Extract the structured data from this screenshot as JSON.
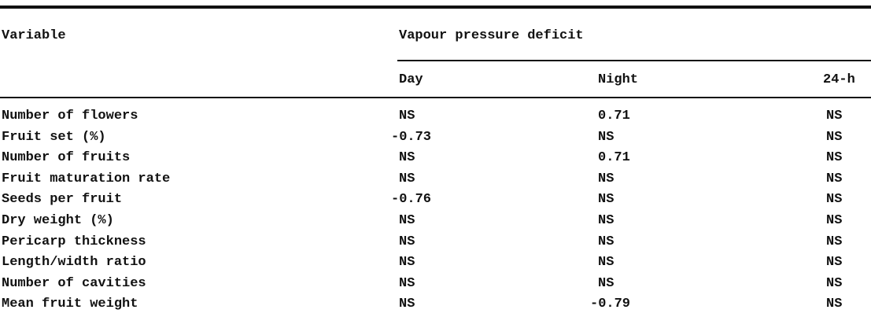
{
  "table": {
    "header": {
      "variable": "Variable",
      "group": "Vapour pressure deficit",
      "columns": [
        "Day",
        "Night",
        "24-h"
      ]
    },
    "rows": [
      {
        "variable": "Number of flowers",
        "day": "NS",
        "night": "0.71",
        "h24": "NS"
      },
      {
        "variable": "Fruit set (%)",
        "day": "-0.73",
        "night": "NS",
        "h24": "NS"
      },
      {
        "variable": "Number of fruits",
        "day": "NS",
        "night": "0.71",
        "h24": "NS"
      },
      {
        "variable": "Fruit maturation rate",
        "day": "NS",
        "night": "NS",
        "h24": "NS"
      },
      {
        "variable": "Seeds per fruit",
        "day": "-0.76",
        "night": "NS",
        "h24": "NS"
      },
      {
        "variable": "Dry weight (%)",
        "day": "NS",
        "night": "NS",
        "h24": "NS"
      },
      {
        "variable": "Pericarp thickness",
        "day": "NS",
        "night": "NS",
        "h24": "NS"
      },
      {
        "variable": "Length/width ratio",
        "day": "NS",
        "night": "NS",
        "h24": "NS"
      },
      {
        "variable": "Number of cavities",
        "day": "NS",
        "night": "NS",
        "h24": "NS"
      },
      {
        "variable": "Mean fruit weight",
        "day": "NS",
        "night": "-0.79",
        "h24": "NS"
      }
    ]
  }
}
